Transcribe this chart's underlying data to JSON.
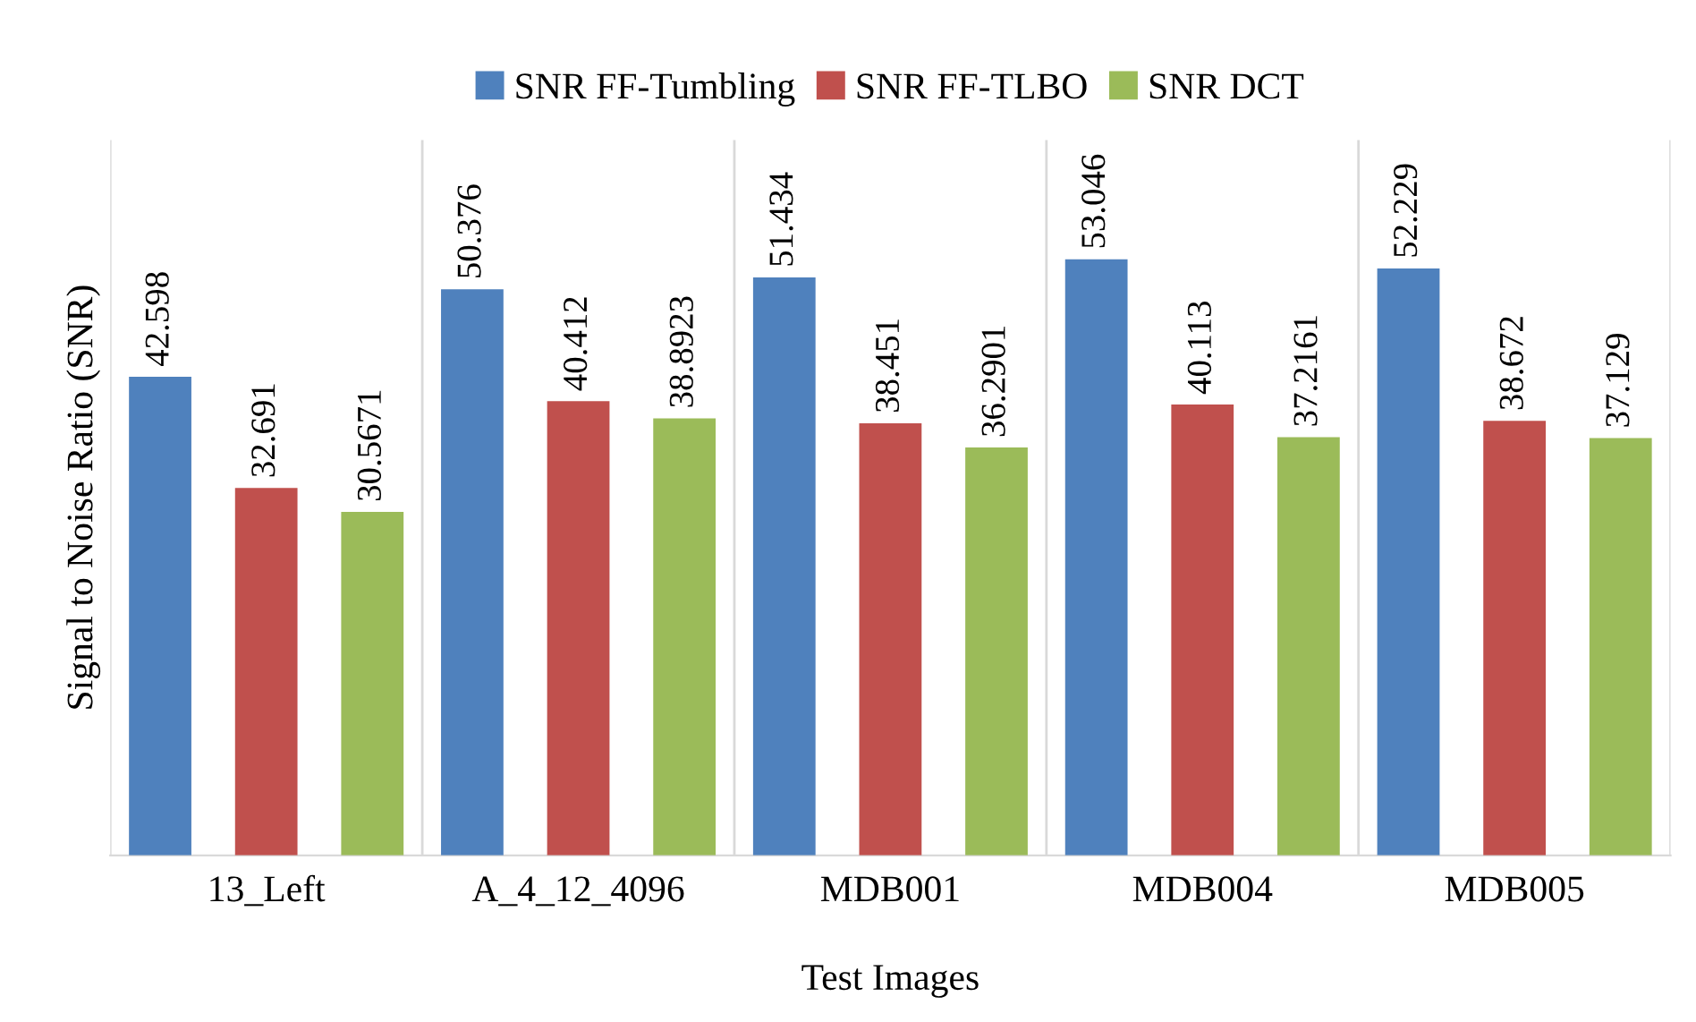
{
  "chart_data": {
    "type": "bar",
    "xlabel": "Test Images",
    "ylabel": "Signal to Noise Ratio (SNR)",
    "categories": [
      "13_Left",
      "A_4_12_4096",
      "MDB001",
      "MDB004",
      "MDB005"
    ],
    "series": [
      {
        "name": "SNR FF-Tumbling",
        "color": "#4f81bd",
        "values": [
          42.598,
          50.376,
          51.434,
          53.046,
          52.229
        ]
      },
      {
        "name": "SNR FF-TLBO",
        "color": "#c0504d",
        "values": [
          32.691,
          40.412,
          38.451,
          40.113,
          38.672
        ]
      },
      {
        "name": "SNR DCT",
        "color": "#9bbb59",
        "values": [
          30.5671,
          38.8923,
          36.2901,
          37.2161,
          37.129
        ]
      }
    ],
    "data_labels": true,
    "legend": "top",
    "grid": "x",
    "tick_labels": "x"
  }
}
